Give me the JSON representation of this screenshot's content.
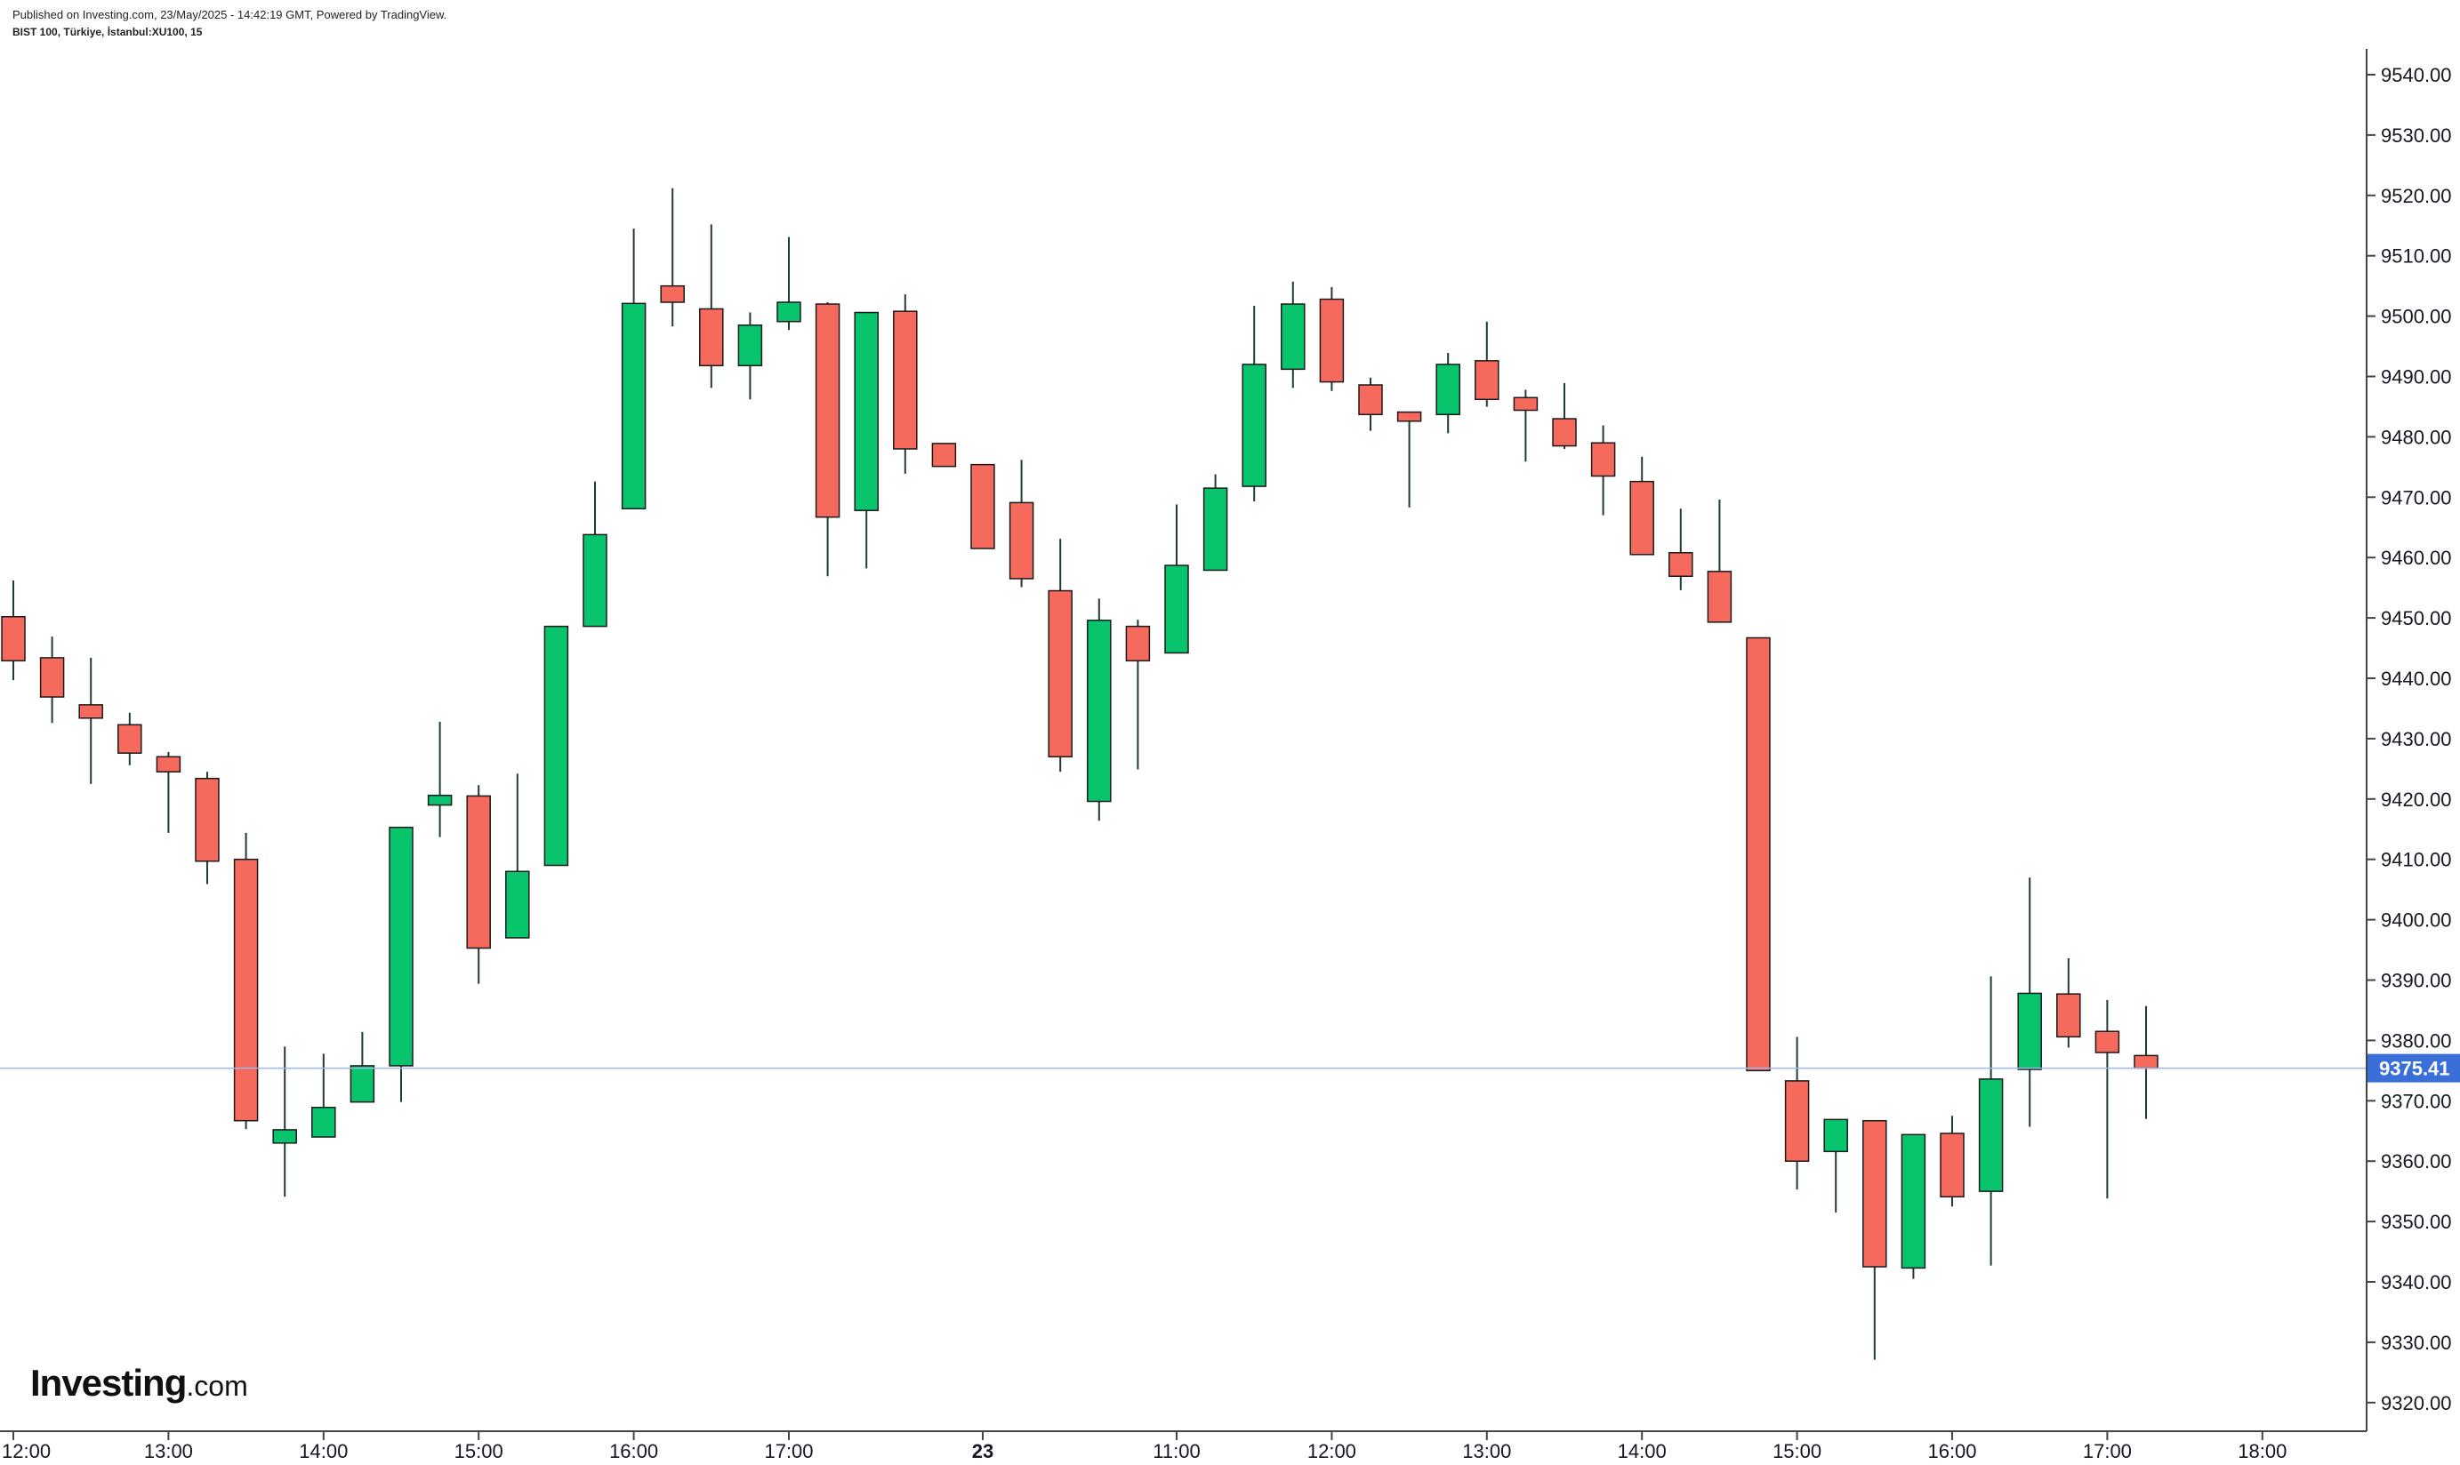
{
  "header": {
    "published": "Published on Investing.com, 23/May/2025 - 14:42:19 GMT, Powered by TradingView.",
    "symbol": "BIST 100, Türkiye, İstanbul:XU100, 15"
  },
  "logo": {
    "main": "Investing",
    "tld": ".com"
  },
  "colors": {
    "up": "#08c46c",
    "down": "#f66a5e",
    "wick": "#1f3b35",
    "price_line": "#9db8e8",
    "price_badge": "#3a6fd8"
  },
  "chart_data": {
    "type": "candlestick",
    "title": "",
    "xlabel": "",
    "ylabel": "",
    "ylim": [
      9313,
      9547
    ],
    "grid": false,
    "y_ticks": [
      "9320.00",
      "9330.00",
      "9340.00",
      "9350.00",
      "9360.00",
      "9370.00",
      "9380.00",
      "9390.00",
      "9400.00",
      "9410.00",
      "9420.00",
      "9430.00",
      "9440.00",
      "9450.00",
      "9460.00",
      "9470.00",
      "9480.00",
      "9490.00",
      "9500.00",
      "9510.00",
      "9520.00",
      "9530.00",
      "9540.00"
    ],
    "x_ticks": [
      {
        "label": "12:00",
        "bar": 0,
        "bold": false
      },
      {
        "label": "13:00",
        "bar": 4,
        "bold": false
      },
      {
        "label": "14:00",
        "bar": 8,
        "bold": false
      },
      {
        "label": "15:00",
        "bar": 12,
        "bold": false
      },
      {
        "label": "16:00",
        "bar": 16,
        "bold": false
      },
      {
        "label": "17:00",
        "bar": 20,
        "bold": false
      },
      {
        "label": "23",
        "bar": 25,
        "bold": true
      },
      {
        "label": "11:00",
        "bar": 30,
        "bold": false
      },
      {
        "label": "12:00",
        "bar": 34,
        "bold": false
      },
      {
        "label": "13:00",
        "bar": 38,
        "bold": false
      },
      {
        "label": "14:00",
        "bar": 42,
        "bold": false
      },
      {
        "label": "15:00",
        "bar": 46,
        "bold": false
      },
      {
        "label": "16:00",
        "bar": 50,
        "bold": false
      },
      {
        "label": "17:00",
        "bar": 54,
        "bold": false
      },
      {
        "label": "18:00",
        "bar": 58,
        "bold": false
      }
    ],
    "last_price": 9375.41,
    "last_price_label": "9375.41",
    "candles": [
      {
        "o": 9450.2,
        "h": 9456.2,
        "l": 9439.7,
        "c": 9442.9
      },
      {
        "o": 9443.4,
        "h": 9446.9,
        "l": 9432.6,
        "c": 9436.9
      },
      {
        "o": 9435.6,
        "h": 9443.4,
        "l": 9422.5,
        "c": 9433.4
      },
      {
        "o": 9432.3,
        "h": 9434.3,
        "l": 9425.6,
        "c": 9427.6
      },
      {
        "o": 9427.0,
        "h": 9427.8,
        "l": 9414.4,
        "c": 9424.5
      },
      {
        "o": 9423.4,
        "h": 9424.5,
        "l": 9405.9,
        "c": 9409.7
      },
      {
        "o": 9410.0,
        "h": 9414.4,
        "l": 9365.3,
        "c": 9366.7
      },
      {
        "o": 9363.0,
        "h": 9379.0,
        "l": 9354.1,
        "c": 9365.2
      },
      {
        "o": 9364.0,
        "h": 9377.8,
        "l": 9364.0,
        "c": 9368.9
      },
      {
        "o": 9369.8,
        "h": 9381.4,
        "l": 9369.8,
        "c": 9375.8
      },
      {
        "o": 9375.8,
        "h": 9415.3,
        "l": 9369.8,
        "c": 9415.3
      },
      {
        "o": 9419.0,
        "h": 9432.8,
        "l": 9413.7,
        "c": 9420.6
      },
      {
        "o": 9420.5,
        "h": 9422.3,
        "l": 9389.4,
        "c": 9395.3
      },
      {
        "o": 9397.0,
        "h": 9424.2,
        "l": 9397.0,
        "c": 9408.0
      },
      {
        "o": 9409.0,
        "h": 9448.6,
        "l": 9409.0,
        "c": 9448.6
      },
      {
        "o": 9448.6,
        "h": 9472.6,
        "l": 9448.6,
        "c": 9463.8
      },
      {
        "o": 9468.1,
        "h": 9514.5,
        "l": 9468.1,
        "c": 9502.1
      },
      {
        "o": 9505.0,
        "h": 9521.2,
        "l": 9498.3,
        "c": 9502.3
      },
      {
        "o": 9501.2,
        "h": 9515.2,
        "l": 9488.1,
        "c": 9491.8
      },
      {
        "o": 9491.8,
        "h": 9500.6,
        "l": 9486.2,
        "c": 9498.5
      },
      {
        "o": 9499.1,
        "h": 9513.1,
        "l": 9497.7,
        "c": 9502.3
      },
      {
        "o": 9502.0,
        "h": 9502.3,
        "l": 9456.9,
        "c": 9466.7
      },
      {
        "o": 9467.8,
        "h": 9500.6,
        "l": 9458.2,
        "c": 9500.6
      },
      {
        "o": 9500.8,
        "h": 9503.6,
        "l": 9473.9,
        "c": 9478.0
      },
      {
        "o": 9478.9,
        "h": 9478.9,
        "l": 9475.1,
        "c": 9475.1
      },
      {
        "o": 9475.4,
        "h": 9475.4,
        "l": 9461.5,
        "c": 9461.5
      },
      {
        "o": 9469.1,
        "h": 9476.2,
        "l": 9455.1,
        "c": 9456.5
      },
      {
        "o": 9454.5,
        "h": 9463.1,
        "l": 9424.5,
        "c": 9427.0
      },
      {
        "o": 9419.6,
        "h": 9453.2,
        "l": 9416.4,
        "c": 9449.6
      },
      {
        "o": 9448.6,
        "h": 9449.7,
        "l": 9424.9,
        "c": 9442.9
      },
      {
        "o": 9444.2,
        "h": 9468.8,
        "l": 9444.2,
        "c": 9458.7
      },
      {
        "o": 9457.9,
        "h": 9473.8,
        "l": 9457.9,
        "c": 9471.5
      },
      {
        "o": 9471.8,
        "h": 9501.7,
        "l": 9469.3,
        "c": 9492.0
      },
      {
        "o": 9491.2,
        "h": 9505.7,
        "l": 9488.1,
        "c": 9502.0
      },
      {
        "o": 9502.8,
        "h": 9504.8,
        "l": 9487.6,
        "c": 9489.1
      },
      {
        "o": 9488.6,
        "h": 9489.8,
        "l": 9481.0,
        "c": 9483.7
      },
      {
        "o": 9484.1,
        "h": 9484.1,
        "l": 9468.3,
        "c": 9482.6
      },
      {
        "o": 9483.7,
        "h": 9493.9,
        "l": 9480.6,
        "c": 9492.0
      },
      {
        "o": 9492.6,
        "h": 9499.1,
        "l": 9485.0,
        "c": 9486.2
      },
      {
        "o": 9486.5,
        "h": 9487.8,
        "l": 9475.9,
        "c": 9484.4
      },
      {
        "o": 9483.0,
        "h": 9488.9,
        "l": 9478.0,
        "c": 9478.5
      },
      {
        "o": 9479.0,
        "h": 9481.9,
        "l": 9467.0,
        "c": 9473.5
      },
      {
        "o": 9472.6,
        "h": 9476.7,
        "l": 9460.5,
        "c": 9460.5
      },
      {
        "o": 9460.8,
        "h": 9468.1,
        "l": 9454.6,
        "c": 9456.9
      },
      {
        "o": 9457.7,
        "h": 9469.6,
        "l": 9449.3,
        "c": 9449.3
      },
      {
        "o": 9446.7,
        "h": 9446.7,
        "l": 9375.0,
        "c": 9375.0
      },
      {
        "o": 9373.3,
        "h": 9380.6,
        "l": 9355.3,
        "c": 9360.0
      },
      {
        "o": 9361.6,
        "h": 9367.0,
        "l": 9351.5,
        "c": 9366.9
      },
      {
        "o": 9366.7,
        "h": 9366.7,
        "l": 9327.1,
        "c": 9342.5
      },
      {
        "o": 9342.3,
        "h": 9364.4,
        "l": 9340.5,
        "c": 9364.4
      },
      {
        "o": 9364.6,
        "h": 9367.5,
        "l": 9352.5,
        "c": 9354.1
      },
      {
        "o": 9355.0,
        "h": 9390.6,
        "l": 9342.7,
        "c": 9373.6
      },
      {
        "o": 9375.2,
        "h": 9407.0,
        "l": 9365.7,
        "c": 9387.8
      },
      {
        "o": 9387.7,
        "h": 9393.6,
        "l": 9378.8,
        "c": 9380.6
      },
      {
        "o": 9381.5,
        "h": 9386.7,
        "l": 9353.8,
        "c": 9378.0
      },
      {
        "o": 9377.5,
        "h": 9385.7,
        "l": 9367.0,
        "c": 9375.4
      }
    ]
  }
}
